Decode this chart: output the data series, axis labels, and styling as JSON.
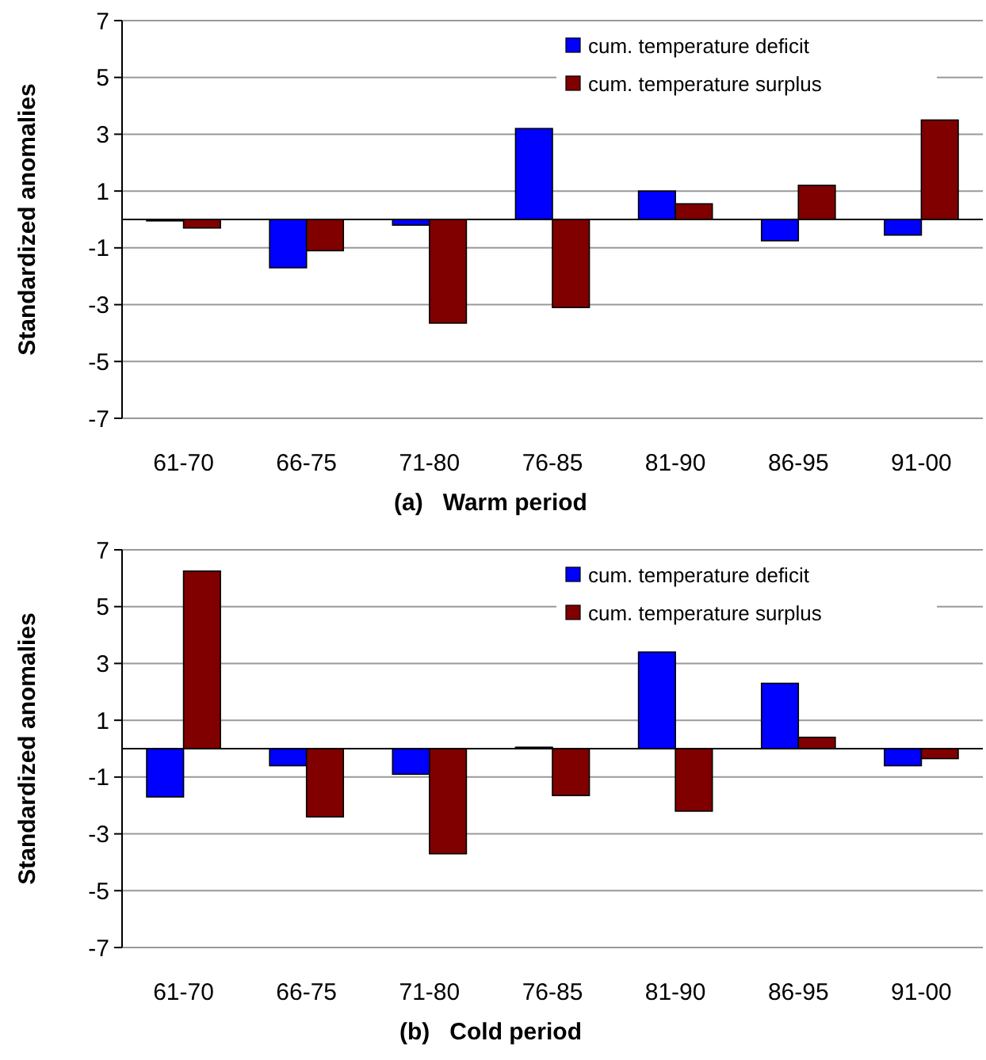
{
  "chart_data": [
    {
      "type": "bar",
      "title": "(a)   Warm period",
      "ylabel": "Standardized anomalies",
      "categories": [
        "61-70",
        "66-75",
        "71-80",
        "76-85",
        "81-90",
        "86-95",
        "91-00"
      ],
      "series": [
        {
          "name": "cum. temperature deficit",
          "color": "#0000ff",
          "values": [
            -0.05,
            -1.7,
            -0.2,
            3.2,
            1.0,
            -0.75,
            -0.55
          ]
        },
        {
          "name": "cum. temperature surplus",
          "color": "#800000",
          "values": [
            -0.3,
            -1.1,
            -3.65,
            -3.1,
            0.55,
            1.2,
            3.5
          ]
        }
      ],
      "ylim": [
        -7,
        7
      ],
      "yticks": [
        -7,
        -5,
        -3,
        -1,
        1,
        3,
        5,
        7
      ],
      "grid": "y",
      "legend": "top right"
    },
    {
      "type": "bar",
      "title": "(b)   Cold period",
      "ylabel": "Standardized anomalies",
      "categories": [
        "61-70",
        "66-75",
        "71-80",
        "76-85",
        "81-90",
        "86-95",
        "91-00"
      ],
      "series": [
        {
          "name": "cum. temperature deficit",
          "color": "#0000ff",
          "values": [
            -1.7,
            -0.6,
            -0.9,
            0.05,
            3.4,
            2.3,
            -0.6
          ]
        },
        {
          "name": "cum. temperature surplus",
          "color": "#800000",
          "values": [
            6.25,
            -2.4,
            -3.7,
            -1.65,
            -2.2,
            0.4,
            -0.35
          ]
        }
      ],
      "ylim": [
        -7,
        7
      ],
      "yticks": [
        -7,
        -5,
        -3,
        -1,
        1,
        3,
        5,
        7
      ],
      "grid": "y",
      "legend": "top right"
    }
  ]
}
